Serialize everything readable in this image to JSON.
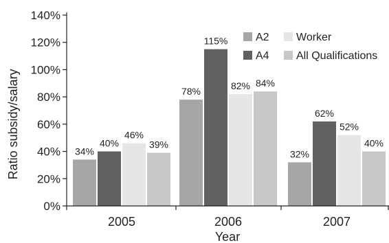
{
  "chart_data": {
    "type": "bar",
    "title": "",
    "xlabel": "Year",
    "ylabel": "Ratio subsidy/salary",
    "categories": [
      "2005",
      "2006",
      "2007"
    ],
    "ylim": [
      0,
      140
    ],
    "yticks": [
      0,
      20,
      40,
      60,
      80,
      100,
      120,
      140
    ],
    "ytick_labels": [
      "0%",
      "20%",
      "40%",
      "60%",
      "80%",
      "100%",
      "120%",
      "140%"
    ],
    "grid": false,
    "legend_position": "top-right",
    "series": [
      {
        "name": "A2",
        "color": "#a6a6a6",
        "values": [
          34,
          78,
          32
        ],
        "labels": [
          "34%",
          "78%",
          "32%"
        ]
      },
      {
        "name": "A4",
        "color": "#616161",
        "values": [
          40,
          115,
          62
        ],
        "labels": [
          "40%",
          "115%",
          "62%"
        ]
      },
      {
        "name": "Worker",
        "color": "#e6e6e6",
        "values": [
          46,
          82,
          52
        ],
        "labels": [
          "46%",
          "82%",
          "52%"
        ]
      },
      {
        "name": "All Qualifications",
        "color": "#c7c7c7",
        "values": [
          39,
          84,
          40
        ],
        "labels": [
          "39%",
          "84%",
          "40%"
        ]
      }
    ]
  }
}
